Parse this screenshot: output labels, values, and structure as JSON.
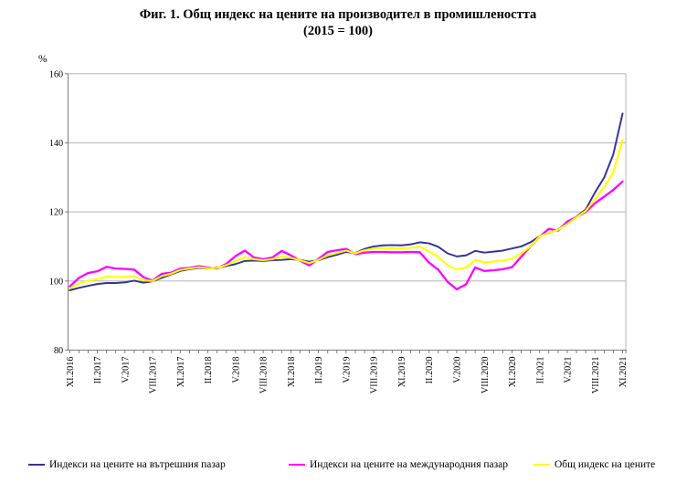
{
  "title": "Фиг. 1. Общ индекс на цените на производител в промишлеността",
  "subtitle": "(2015 = 100)",
  "y_axis_unit": "%",
  "chart_data": {
    "type": "line",
    "title": "Фиг. 1. Общ индекс на цените на производител в промишлеността (2015 = 100)",
    "ylabel": "%",
    "ylim": [
      80,
      160
    ],
    "yticks": [
      80,
      100,
      120,
      140,
      160
    ],
    "grid": "horizontal",
    "legend_position": "bottom",
    "x_tick_step": 3,
    "x": [
      "XI.2016",
      "XII.2016",
      "I.2017",
      "II.2017",
      "III.2017",
      "IV.2017",
      "V.2017",
      "VI.2017",
      "VII.2017",
      "VIII.2017",
      "IX.2017",
      "X.2017",
      "XI.2017",
      "XII.2017",
      "I.2018",
      "II.2018",
      "III.2018",
      "IV.2018",
      "V.2018",
      "VI.2018",
      "VII.2018",
      "VIII.2018",
      "IX.2018",
      "X.2018",
      "XI.2018",
      "XII.2018",
      "I.2019",
      "II.2019",
      "III.2019",
      "IV.2019",
      "V.2019",
      "VI.2019",
      "VII.2019",
      "VIII.2019",
      "IX.2019",
      "X.2019",
      "XI.2019",
      "XII.2019",
      "I.2020",
      "II.2020",
      "III.2020",
      "IV.2020",
      "V.2020",
      "VI.2020",
      "VII.2020",
      "VIII.2020",
      "IX.2020",
      "X.2020",
      "XI.2020",
      "XII.2020",
      "I.2021",
      "II.2021",
      "III.2021",
      "IV.2021",
      "V.2021",
      "VI.2021",
      "VII.2021",
      "VIII.2021",
      "IX.2021",
      "X.2021",
      "XI.2021"
    ],
    "series": [
      {
        "name": "Индекси на цените на вътрешния пазар",
        "color": "#333399",
        "values": [
          97.3,
          98.0,
          98.6,
          99.1,
          99.4,
          99.4,
          99.6,
          100.1,
          99.5,
          99.9,
          100.9,
          101.9,
          102.9,
          103.4,
          103.8,
          103.6,
          103.9,
          104.3,
          104.9,
          105.8,
          105.9,
          105.8,
          106.0,
          106.1,
          106.3,
          106.1,
          105.6,
          106.0,
          106.9,
          107.6,
          108.4,
          108.1,
          109.3,
          110.0,
          110.3,
          110.4,
          110.3,
          110.6,
          111.2,
          110.9,
          109.9,
          108.0,
          107.1,
          107.4,
          108.7,
          108.2,
          108.5,
          108.8,
          109.4,
          110.0,
          111.2,
          113.0,
          113.9,
          114.9,
          116.8,
          118.6,
          120.7,
          125.6,
          129.9,
          136.7,
          148.5
        ]
      },
      {
        "name": "Индекси на цените на международния пазар",
        "color": "#FF00FF",
        "values": [
          98.4,
          100.9,
          102.3,
          102.8,
          104.1,
          103.6,
          103.5,
          103.3,
          101.1,
          100.1,
          102.1,
          102.4,
          103.6,
          103.8,
          104.3,
          103.9,
          103.6,
          105.0,
          107.2,
          108.8,
          106.8,
          106.3,
          106.8,
          108.7,
          107.4,
          105.9,
          104.5,
          106.4,
          108.4,
          108.9,
          109.3,
          107.8,
          108.2,
          108.4,
          108.4,
          108.3,
          108.3,
          108.4,
          108.3,
          105.3,
          103.3,
          99.8,
          97.6,
          99.0,
          103.9,
          102.9,
          103.1,
          103.4,
          104.0,
          107.0,
          110.0,
          112.8,
          115.1,
          114.6,
          117.2,
          118.5,
          120.0,
          122.5,
          124.4,
          126.4,
          128.8
        ]
      },
      {
        "name": "Общ индекс на цените",
        "color": "#FFFF00",
        "values": [
          97.9,
          99.2,
          100.1,
          100.5,
          101.3,
          101.1,
          101.2,
          101.4,
          100.2,
          100.0,
          101.4,
          102.1,
          103.2,
          103.6,
          104.0,
          103.7,
          103.8,
          104.6,
          105.8,
          106.9,
          106.3,
          106.0,
          106.3,
          107.1,
          106.7,
          106.0,
          105.2,
          106.1,
          107.4,
          108.1,
          108.8,
          108.0,
          108.9,
          109.4,
          109.5,
          109.5,
          109.4,
          109.6,
          109.9,
          108.6,
          107.0,
          104.6,
          103.3,
          103.9,
          106.1,
          105.4,
          105.6,
          105.9,
          106.4,
          107.9,
          110.0,
          112.9,
          114.0,
          114.8,
          116.5,
          118.4,
          120.3,
          123.7,
          127.2,
          131.5,
          140.9
        ]
      }
    ]
  }
}
